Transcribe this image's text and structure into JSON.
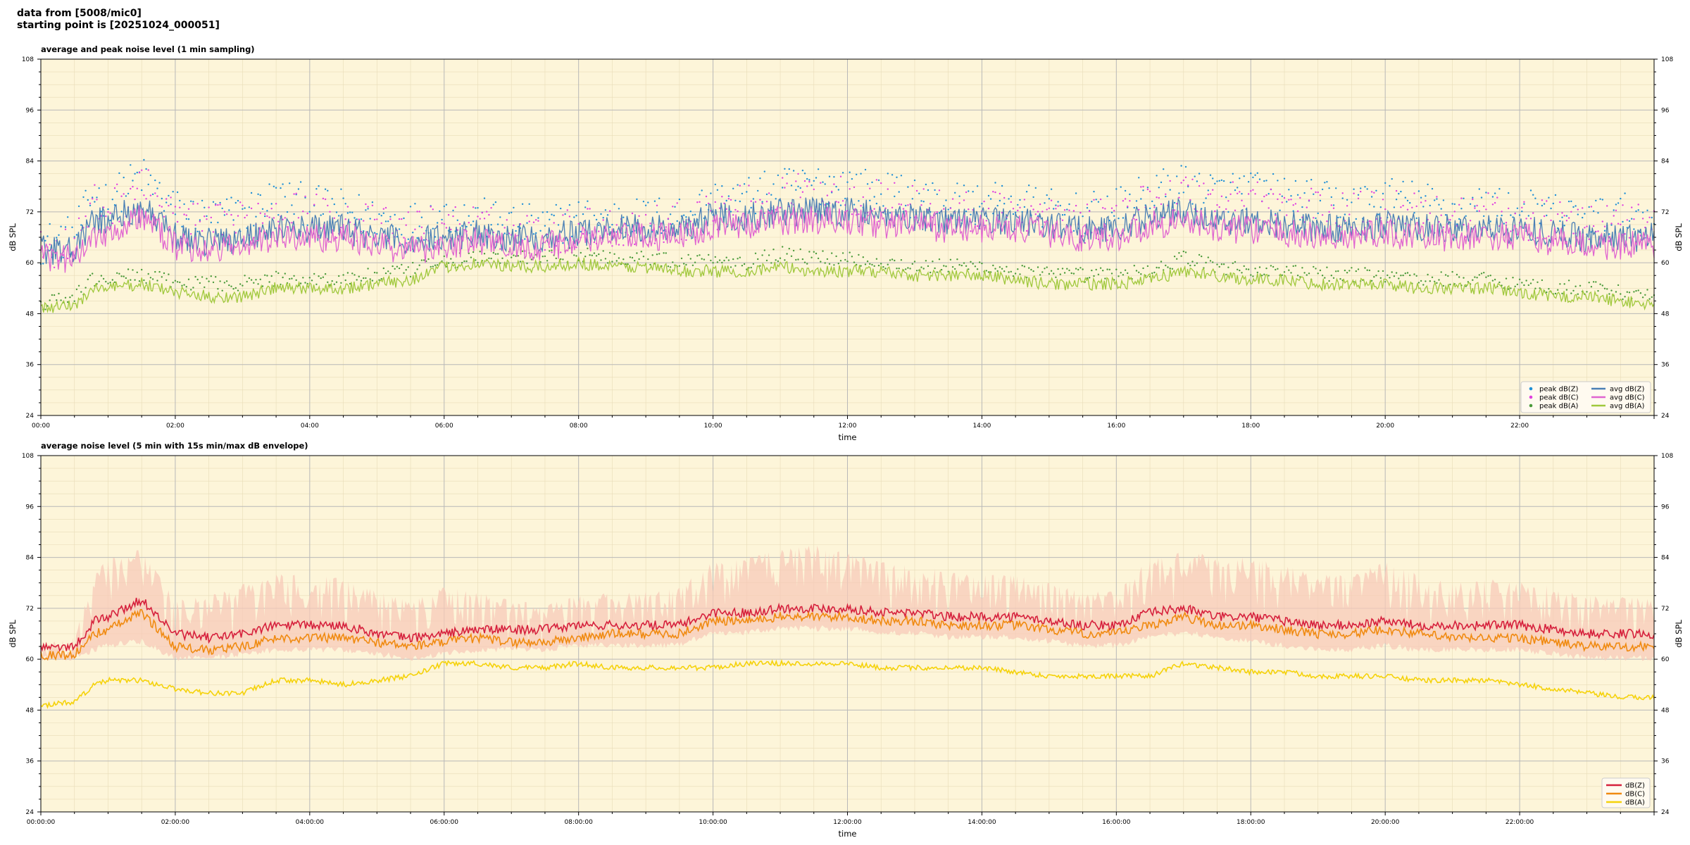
{
  "header": {
    "line1": "data from [5008/mic0]",
    "line2": "starting point is [20251024_000051]"
  },
  "colors": {
    "panel_bg": "#fdf5d9",
    "peak_z": "#1f8fd6",
    "peak_c": "#e040e0",
    "peak_a": "#4a9a3a",
    "avg_z": "#4a7fb5",
    "avg_c": "#e065d0",
    "avg_a": "#a0c83c",
    "dbz": "#d6203c",
    "dbc": "#f08a10",
    "dba": "#f5d20a",
    "envelope": "#f7c9b8"
  },
  "chart_data": [
    {
      "type": "line",
      "title": "average and peak noise level (1 min sampling)",
      "xlabel": "time",
      "ylabel": "dB SPL",
      "ylabel_right": "dB SPL",
      "ylim": [
        24,
        108
      ],
      "yticks": [
        "24",
        "36",
        "48",
        "60",
        "72",
        "84",
        "96",
        "108"
      ],
      "xlim_hours": [
        0,
        24
      ],
      "xticks": [
        "00:00",
        "02:00",
        "04:00",
        "06:00",
        "08:00",
        "10:00",
        "12:00",
        "14:00",
        "16:00",
        "18:00",
        "20:00",
        "22:00"
      ],
      "grid": true,
      "legend_position": "lower-right",
      "x_hours": [
        0,
        0.5,
        0.8,
        1,
        1.5,
        2,
        2.5,
        3,
        3.5,
        4,
        4.5,
        5,
        5.5,
        6,
        6.5,
        7,
        7.5,
        8,
        8.5,
        9,
        9.5,
        10,
        10.5,
        11,
        11.5,
        12,
        12.5,
        13,
        13.5,
        14,
        14.5,
        15,
        15.5,
        16,
        16.5,
        17,
        17.5,
        18,
        18.5,
        19,
        19.5,
        20,
        20.5,
        21,
        21.5,
        22,
        22.5,
        23,
        23.5,
        24
      ],
      "series": [
        {
          "name": "peak dB(Z)",
          "kind": "points",
          "values": [
            64,
            66,
            76,
            74,
            80,
            72,
            70,
            71,
            75,
            73,
            72,
            70,
            69,
            71,
            70,
            69,
            68,
            70,
            70,
            70,
            71,
            74,
            75,
            77,
            78,
            78,
            76,
            75,
            74,
            73,
            74,
            72,
            71,
            72,
            76,
            78,
            76,
            77,
            75,
            74,
            73,
            75,
            74,
            72,
            73,
            72,
            71,
            70,
            71,
            70
          ]
        },
        {
          "name": "peak dB(C)",
          "kind": "points",
          "values": [
            62,
            64,
            73,
            72,
            78,
            70,
            68,
            69,
            73,
            71,
            70,
            68,
            67,
            69,
            68,
            67,
            66,
            68,
            68,
            68,
            69,
            72,
            73,
            75,
            76,
            76,
            74,
            73,
            72,
            71,
            72,
            70,
            69,
            70,
            74,
            76,
            74,
            75,
            73,
            72,
            71,
            73,
            72,
            70,
            71,
            70,
            69,
            68,
            69,
            68
          ]
        },
        {
          "name": "peak dB(A)",
          "kind": "points",
          "values": [
            50,
            52,
            56,
            56,
            57,
            55,
            55,
            55,
            56,
            56,
            56,
            57,
            58,
            60,
            61,
            61,
            61,
            62,
            61,
            61,
            60,
            61,
            60,
            62,
            61,
            61,
            60,
            59,
            59,
            59,
            58,
            57,
            57,
            57,
            58,
            61,
            59,
            58,
            58,
            57,
            57,
            57,
            56,
            56,
            56,
            55,
            54,
            54,
            53,
            52
          ]
        },
        {
          "name": "avg dB(Z)",
          "kind": "line",
          "values": [
            63,
            63,
            70,
            70,
            73,
            66,
            65,
            66,
            68,
            68,
            68,
            66,
            65,
            66,
            67,
            66,
            66,
            67,
            68,
            68,
            68,
            71,
            71,
            72,
            72,
            72,
            71,
            71,
            70,
            70,
            70,
            69,
            68,
            68,
            71,
            72,
            70,
            70,
            69,
            68,
            68,
            69,
            68,
            68,
            68,
            68,
            67,
            66,
            66,
            66
          ]
        },
        {
          "name": "avg dB(C)",
          "kind": "line",
          "values": [
            61,
            61,
            67,
            67,
            71,
            64,
            63,
            64,
            66,
            66,
            66,
            64,
            63,
            64,
            65,
            64,
            64,
            65,
            66,
            66,
            66,
            69,
            69,
            70,
            70,
            70,
            69,
            69,
            68,
            68,
            68,
            67,
            66,
            66,
            69,
            70,
            68,
            68,
            67,
            66,
            66,
            67,
            66,
            66,
            66,
            66,
            65,
            64,
            64,
            64
          ]
        },
        {
          "name": "avg dB(A)",
          "kind": "line",
          "values": [
            49,
            50,
            54,
            54,
            55,
            53,
            52,
            52,
            54,
            54,
            54,
            55,
            56,
            59,
            60,
            59,
            59,
            60,
            59,
            59,
            58,
            58,
            58,
            59,
            58,
            58,
            58,
            57,
            57,
            57,
            56,
            55,
            55,
            55,
            56,
            58,
            57,
            56,
            56,
            55,
            55,
            55,
            54,
            54,
            54,
            53,
            52,
            52,
            51,
            50
          ]
        }
      ]
    },
    {
      "type": "line",
      "title": "average noise level (5 min with 15s min/max dB envelope)",
      "xlabel": "time",
      "ylabel": "dB SPL",
      "ylabel_right": "dB SPL",
      "ylim": [
        24,
        108
      ],
      "yticks": [
        "24",
        "36",
        "48",
        "60",
        "72",
        "84",
        "96",
        "108"
      ],
      "xlim_hours": [
        0,
        24
      ],
      "xticks": [
        "00:00:00",
        "02:00:00",
        "04:00:00",
        "06:00:00",
        "08:00:00",
        "10:00:00",
        "12:00:00",
        "14:00:00",
        "16:00:00",
        "18:00:00",
        "20:00:00",
        "22:00:00"
      ],
      "grid": true,
      "legend_position": "lower-right",
      "x_hours": [
        0,
        0.5,
        0.8,
        1,
        1.5,
        2,
        2.5,
        3,
        3.5,
        4,
        4.5,
        5,
        5.5,
        6,
        6.5,
        7,
        7.5,
        8,
        8.5,
        9,
        9.5,
        10,
        10.5,
        11,
        11.5,
        12,
        12.5,
        13,
        13.5,
        14,
        14.5,
        15,
        15.5,
        16,
        16.5,
        17,
        17.5,
        18,
        18.5,
        19,
        19.5,
        20,
        20.5,
        21,
        21.5,
        22,
        22.5,
        23,
        23.5,
        24
      ],
      "envelope": {
        "min": [
          61,
          61,
          63,
          64,
          65,
          61,
          61,
          62,
          63,
          63,
          63,
          62,
          61,
          62,
          63,
          63,
          63,
          64,
          64,
          64,
          64,
          67,
          67,
          68,
          68,
          68,
          67,
          67,
          66,
          66,
          66,
          65,
          64,
          64,
          66,
          67,
          66,
          65,
          64,
          63,
          63,
          64,
          63,
          63,
          63,
          63,
          62,
          61,
          61,
          61
        ],
        "max": [
          64,
          66,
          80,
          84,
          86,
          74,
          75,
          78,
          80,
          80,
          79,
          76,
          74,
          77,
          76,
          74,
          73,
          75,
          76,
          76,
          77,
          83,
          84,
          86,
          87,
          85,
          83,
          82,
          81,
          80,
          80,
          78,
          76,
          76,
          84,
          86,
          84,
          84,
          82,
          80,
          80,
          83,
          80,
          78,
          79,
          79,
          77,
          75,
          75,
          74
        ]
      },
      "series": [
        {
          "name": "dB(Z)",
          "values": [
            63,
            63,
            69,
            70,
            74,
            66,
            65,
            66,
            68,
            68,
            68,
            66,
            65,
            66,
            67,
            67,
            67,
            68,
            68,
            68,
            68,
            71,
            71,
            72,
            72,
            72,
            71,
            71,
            70,
            70,
            70,
            69,
            68,
            68,
            71,
            72,
            70,
            70,
            69,
            68,
            68,
            69,
            68,
            68,
            68,
            68,
            67,
            66,
            66,
            66
          ]
        },
        {
          "name": "dB(C)",
          "values": [
            61,
            61,
            66,
            67,
            71,
            63,
            62,
            63,
            65,
            65,
            65,
            64,
            63,
            64,
            65,
            64,
            64,
            65,
            66,
            66,
            66,
            69,
            69,
            70,
            70,
            70,
            69,
            69,
            68,
            68,
            68,
            67,
            66,
            66,
            68,
            70,
            68,
            68,
            67,
            66,
            66,
            67,
            66,
            65,
            65,
            65,
            64,
            63,
            63,
            63
          ]
        },
        {
          "name": "dB(A)",
          "values": [
            49,
            50,
            54,
            55,
            55,
            53,
            52,
            52,
            55,
            55,
            54,
            55,
            56,
            59,
            59,
            58,
            58,
            59,
            58,
            58,
            58,
            58,
            59,
            59,
            59,
            59,
            58,
            58,
            58,
            58,
            57,
            56,
            56,
            56,
            56,
            59,
            58,
            57,
            57,
            56,
            56,
            56,
            55,
            55,
            55,
            54,
            53,
            52,
            51,
            51
          ]
        }
      ]
    }
  ]
}
